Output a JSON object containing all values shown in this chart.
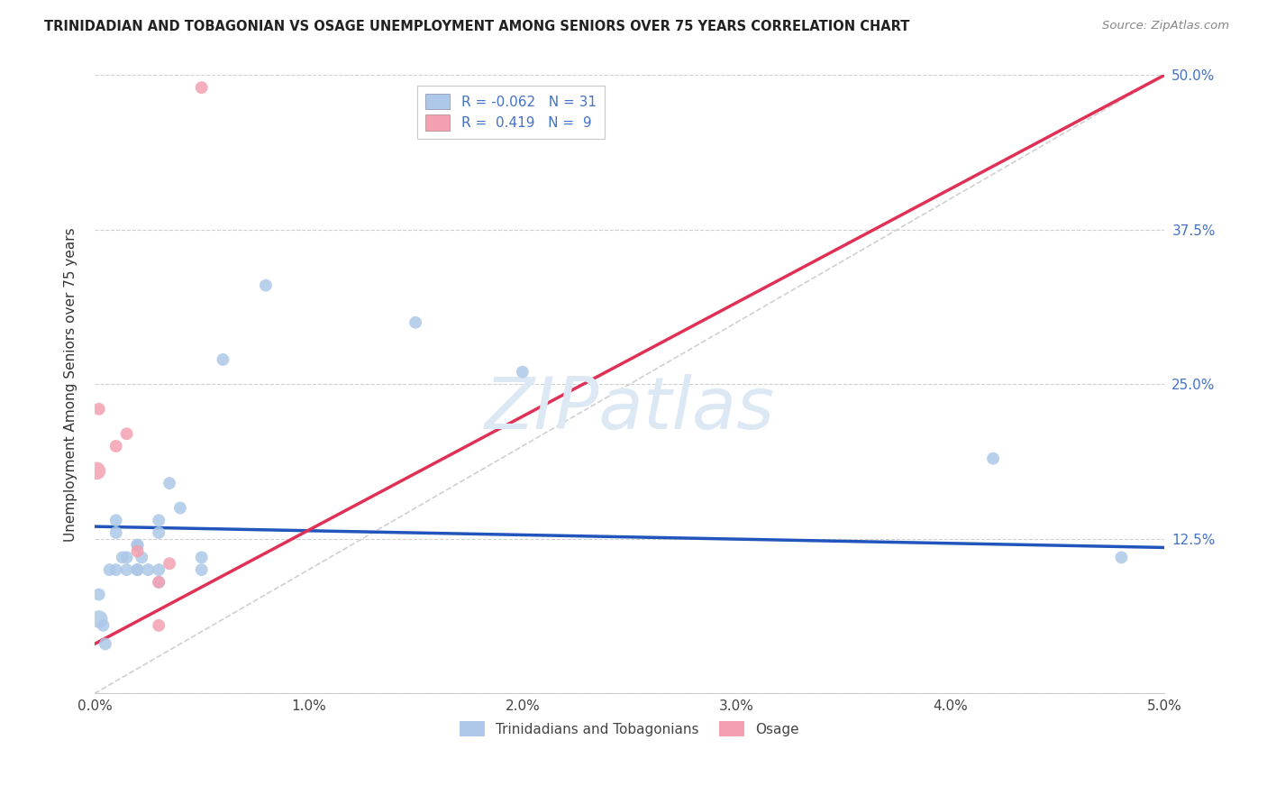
{
  "title": "TRINIDADIAN AND TOBAGONIAN VS OSAGE UNEMPLOYMENT AMONG SENIORS OVER 75 YEARS CORRELATION CHART",
  "source": "Source: ZipAtlas.com",
  "ylabel": "Unemployment Among Seniors over 75 years",
  "r_trini": -0.062,
  "n_trini": 31,
  "r_osage": 0.419,
  "n_osage": 9,
  "xlim": [
    0.0,
    0.05
  ],
  "ylim": [
    0.0,
    0.5
  ],
  "xtick_vals": [
    0.0,
    0.01,
    0.02,
    0.03,
    0.04,
    0.05
  ],
  "xtick_labels": [
    "0.0%",
    "1.0%",
    "2.0%",
    "3.0%",
    "4.0%",
    "5.0%"
  ],
  "ytick_vals": [
    0.0,
    0.125,
    0.25,
    0.375,
    0.5
  ],
  "ytick_labels": [
    "",
    "12.5%",
    "25.0%",
    "37.5%",
    "50.0%"
  ],
  "color_trini": "#adc8e8",
  "color_osage": "#f4a0b0",
  "color_trini_line": "#2255bb",
  "color_osage_line": "#e03055",
  "color_diagonal": "#d0d0d0",
  "color_grid": "#d0d0d0",
  "watermark_text": "ZIPatlas",
  "watermark_color": "#dde8f5",
  "legend_box_color": "#4472c4",
  "trini_x": [
    0.0002,
    0.0002,
    0.0004,
    0.0005,
    0.0007,
    0.001,
    0.001,
    0.001,
    0.0013,
    0.0015,
    0.0015,
    0.002,
    0.002,
    0.002,
    0.002,
    0.0022,
    0.0025,
    0.003,
    0.003,
    0.003,
    0.003,
    0.0035,
    0.004,
    0.005,
    0.005,
    0.006,
    0.008,
    0.015,
    0.02,
    0.042,
    0.048
  ],
  "trini_y": [
    0.06,
    0.08,
    0.055,
    0.04,
    0.1,
    0.13,
    0.1,
    0.14,
    0.11,
    0.1,
    0.11,
    0.1,
    0.12,
    0.12,
    0.1,
    0.11,
    0.1,
    0.1,
    0.09,
    0.13,
    0.14,
    0.17,
    0.15,
    0.11,
    0.1,
    0.27,
    0.33,
    0.3,
    0.26,
    0.19,
    0.11
  ],
  "trini_sizes": [
    200,
    100,
    100,
    100,
    100,
    100,
    100,
    100,
    100,
    100,
    100,
    100,
    100,
    100,
    100,
    100,
    100,
    100,
    100,
    100,
    100,
    100,
    100,
    100,
    100,
    100,
    100,
    100,
    100,
    100,
    100
  ],
  "osage_x": [
    0.0001,
    0.0002,
    0.001,
    0.0015,
    0.002,
    0.003,
    0.003,
    0.0035,
    0.005
  ],
  "osage_y": [
    0.18,
    0.23,
    0.2,
    0.21,
    0.115,
    0.055,
    0.09,
    0.105,
    0.49
  ],
  "osage_sizes": [
    200,
    100,
    100,
    100,
    100,
    100,
    100,
    100,
    100
  ]
}
